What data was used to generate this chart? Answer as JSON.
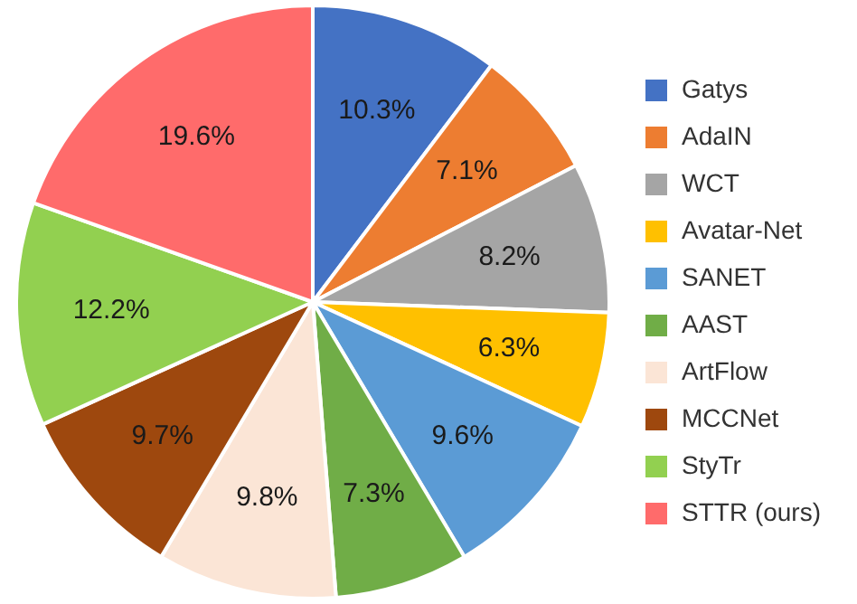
{
  "chart_data": {
    "type": "pie",
    "categories": [
      "Gatys",
      "AdaIN",
      "WCT",
      "Avatar-Net",
      "SANET",
      "AAST",
      "ArtFlow",
      "MCCNet",
      "StyTr",
      "STTR (ours)"
    ],
    "values": [
      10.3,
      7.1,
      8.2,
      6.3,
      9.6,
      7.3,
      9.8,
      9.7,
      12.2,
      19.6
    ],
    "value_labels": [
      "10.3%",
      "7.1%",
      "8.2%",
      "6.3%",
      "9.6%",
      "7.3%",
      "9.8%",
      "9.7%",
      "12.2%",
      "19.6%"
    ],
    "colors": [
      "#4472c4",
      "#ed7d31",
      "#a5a5a5",
      "#ffc000",
      "#5b9bd5",
      "#70ad47",
      "#fbe5d6",
      "#9e480e",
      "#92d050",
      "#ff6b6b"
    ],
    "legend": "right"
  }
}
